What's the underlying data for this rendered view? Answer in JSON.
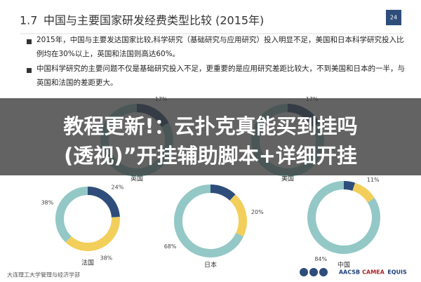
{
  "header": {
    "number": "1.7",
    "title": "中国与主要国家研发经费类型比较 (2015年)",
    "page": "24"
  },
  "bullets": [
    "2015年，中国与主要发达国家比较,科学研究（基础研究与应用研究）投入明显不足，美国和日本科学研究投入比例均在30%以上，英国和法国则高达60%。",
    "中国科学研究的主要问题不仅是基础研究投入不足，更重要的是应用研究差距比较大，不到美国和日本的一半，与英国和法国的差距更大。"
  ],
  "banner": {
    "lines": [
      "教程更新!：云扑克真能买到挂吗",
      "(透视)”开挂辅助脚本+详细开挂"
    ]
  },
  "charts": [
    {
      "label": "英国",
      "segments": [
        {
          "value": 17,
          "label": "17%",
          "color": "#2e4d7b"
        }
      ]
    },
    {
      "label": "美国",
      "segments": [
        {
          "value": 17,
          "label": "17%",
          "color": "#2e4d7b"
        }
      ]
    },
    {
      "label": "法国",
      "segments": [
        {
          "value": 24,
          "label": "24%",
          "color": "#2e4d7b"
        },
        {
          "value": 38,
          "label": "38%",
          "color": "#f2cf5b"
        },
        {
          "value": 38,
          "label": "38%",
          "color": "#93c8c6"
        }
      ]
    },
    {
      "label": "日本",
      "segments": [
        {
          "value": 12,
          "color": "#2e4d7b"
        },
        {
          "value": 20,
          "label": "20%",
          "color": "#f2cf5b"
        },
        {
          "value": 68,
          "label": "68%",
          "color": "#93c8c6"
        }
      ]
    },
    {
      "label": "中国",
      "segments": [
        {
          "value": 5,
          "color": "#2e4d7b"
        },
        {
          "value": 11,
          "label": "11%",
          "color": "#f2cf5b"
        },
        {
          "value": 84,
          "label": "84%",
          "color": "#93c8c6"
        }
      ]
    }
  ],
  "footer": {
    "institution": "大连理工大学管理与经济学部",
    "logos": [
      "AACSB",
      "CAMEA",
      "EQUIS"
    ]
  }
}
